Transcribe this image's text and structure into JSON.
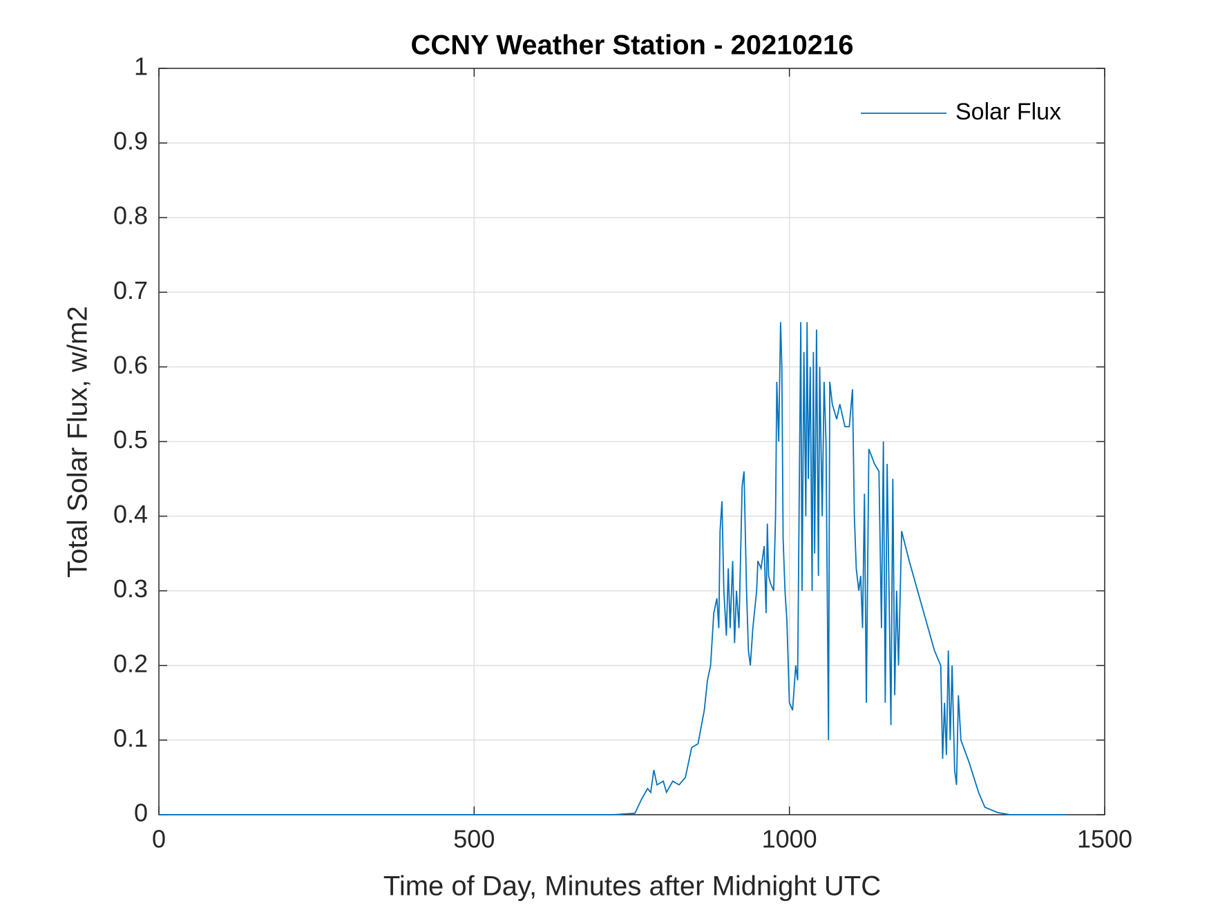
{
  "chart_data": {
    "type": "line",
    "title": "CCNY Weather Station - 20210216",
    "x_label": "Time of Day, Minutes after Midnight UTC",
    "y_label": "Total Solar Flux, w/m2",
    "xlim": [
      0,
      1500
    ],
    "xticks": [
      0,
      500,
      1000,
      1500
    ],
    "ylim": [
      0,
      1
    ],
    "yticks": [
      0,
      0.1,
      0.2,
      0.3,
      0.4,
      0.5,
      0.6,
      0.7,
      0.8,
      0.9,
      1
    ],
    "grid": true,
    "legend": "upper-right",
    "x": [
      0,
      720,
      755,
      765,
      775,
      780,
      785,
      790,
      800,
      805,
      815,
      825,
      835,
      845,
      855,
      865,
      870,
      875,
      880,
      885,
      888,
      890,
      893,
      896,
      900,
      903,
      906,
      910,
      913,
      916,
      920,
      925,
      928,
      932,
      935,
      938,
      942,
      948,
      950,
      955,
      960,
      963,
      965,
      967,
      970,
      975,
      978,
      980,
      983,
      986,
      988,
      990,
      993,
      996,
      1000,
      1005,
      1010,
      1013,
      1018,
      1020,
      1023,
      1026,
      1028,
      1030,
      1033,
      1036,
      1038,
      1040,
      1043,
      1046,
      1048,
      1052,
      1055,
      1058,
      1062,
      1064,
      1068,
      1075,
      1080,
      1088,
      1095,
      1100,
      1103,
      1106,
      1110,
      1113,
      1116,
      1119,
      1122,
      1126,
      1135,
      1142,
      1146,
      1149,
      1152,
      1155,
      1158,
      1161,
      1164,
      1167,
      1170,
      1173,
      1178,
      1190,
      1210,
      1230,
      1240,
      1243,
      1246,
      1249,
      1252,
      1255,
      1258,
      1262,
      1265,
      1268,
      1272,
      1285,
      1300,
      1310,
      1330,
      1350,
      1440
    ],
    "series": [
      {
        "name": "Solar Flux",
        "color": "#0072bd",
        "values": [
          0,
          0,
          0.002,
          0.02,
          0.035,
          0.03,
          0.06,
          0.04,
          0.045,
          0.03,
          0.045,
          0.04,
          0.05,
          0.09,
          0.095,
          0.14,
          0.18,
          0.2,
          0.27,
          0.29,
          0.25,
          0.38,
          0.42,
          0.3,
          0.24,
          0.33,
          0.25,
          0.34,
          0.23,
          0.3,
          0.25,
          0.44,
          0.46,
          0.3,
          0.22,
          0.2,
          0.25,
          0.3,
          0.34,
          0.33,
          0.36,
          0.27,
          0.39,
          0.32,
          0.31,
          0.3,
          0.4,
          0.58,
          0.5,
          0.66,
          0.6,
          0.37,
          0.3,
          0.26,
          0.15,
          0.14,
          0.2,
          0.18,
          0.66,
          0.3,
          0.62,
          0.4,
          0.66,
          0.45,
          0.6,
          0.3,
          0.62,
          0.35,
          0.65,
          0.32,
          0.6,
          0.4,
          0.58,
          0.5,
          0.1,
          0.58,
          0.55,
          0.53,
          0.55,
          0.52,
          0.52,
          0.57,
          0.4,
          0.33,
          0.3,
          0.32,
          0.25,
          0.43,
          0.15,
          0.49,
          0.47,
          0.46,
          0.25,
          0.5,
          0.15,
          0.47,
          0.3,
          0.12,
          0.45,
          0.16,
          0.3,
          0.2,
          0.38,
          0.34,
          0.28,
          0.22,
          0.2,
          0.075,
          0.15,
          0.08,
          0.22,
          0.1,
          0.2,
          0.06,
          0.04,
          0.16,
          0.1,
          0.07,
          0.03,
          0.01,
          0.003,
          0,
          0
        ]
      }
    ]
  }
}
